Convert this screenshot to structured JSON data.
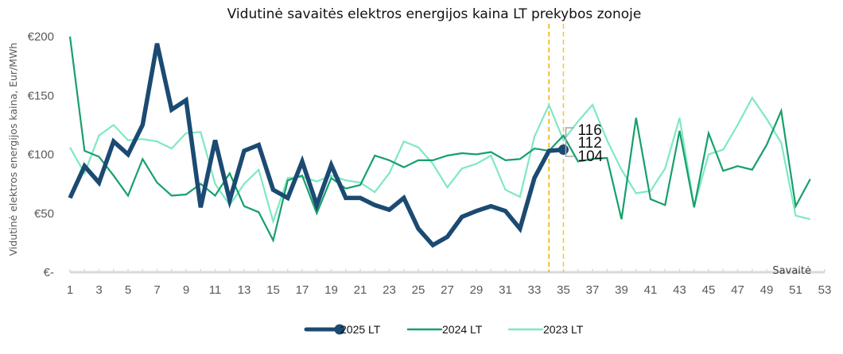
{
  "chart_data": {
    "type": "line",
    "title": "Vidutinė savaitės elektros energijos kaina LT prekybos zonoje",
    "xlabel": "Savaitė",
    "ylabel": "Vidutinė elektros energijos kaina, Eur/MWh",
    "ylim": [
      0,
      200
    ],
    "xlim": [
      1,
      53
    ],
    "y_ticks": [
      {
        "value": 0,
        "label": "€-"
      },
      {
        "value": 50,
        "label": "€50"
      },
      {
        "value": 100,
        "label": "€100"
      },
      {
        "value": 150,
        "label": "€150"
      },
      {
        "value": 200,
        "label": "€200"
      }
    ],
    "x_ticks": [
      "1",
      "3",
      "5",
      "7",
      "9",
      "11",
      "13",
      "15",
      "17",
      "19",
      "21",
      "23",
      "25",
      "27",
      "29",
      "31",
      "33",
      "35",
      "37",
      "39",
      "41",
      "43",
      "45",
      "47",
      "49",
      "51",
      "53"
    ],
    "grid": false,
    "legend_position": "bottom",
    "reference_lines": [
      {
        "x": 34,
        "color": "#f0b400"
      },
      {
        "x": 35,
        "color": "#f5c842"
      }
    ],
    "series": [
      {
        "name": "2025 LT",
        "color": "#1b4a72",
        "values": [
          63,
          90,
          76,
          111,
          100,
          125,
          194,
          138,
          146,
          55,
          112,
          61,
          103,
          108,
          70,
          63,
          94,
          57,
          91,
          63,
          63,
          57,
          53,
          63,
          37,
          23,
          30,
          47,
          52,
          56,
          52,
          37,
          80,
          103,
          104
        ]
      },
      {
        "name": "2024 LT",
        "color": "#16a06a",
        "values": [
          200,
          103,
          98,
          82,
          65,
          96,
          76,
          65,
          66,
          75,
          65,
          84,
          56,
          51,
          27,
          78,
          82,
          50,
          80,
          71,
          74,
          99,
          95,
          89,
          95,
          95,
          99,
          101,
          100,
          102,
          95,
          96,
          105,
          103,
          116,
          94,
          96,
          97,
          45,
          131,
          62,
          57,
          120,
          55,
          118,
          86,
          90,
          87,
          108,
          137,
          56,
          79
        ]
      },
      {
        "name": "2023 LT",
        "color": "#7fe8c4",
        "values": [
          106,
          84,
          116,
          125,
          112,
          113,
          111,
          105,
          118,
          119,
          75,
          57,
          75,
          87,
          43,
          80,
          81,
          77,
          82,
          78,
          76,
          68,
          84,
          111,
          106,
          92,
          72,
          88,
          92,
          99,
          70,
          64,
          115,
          142,
          112,
          128,
          142,
          112,
          87,
          67,
          69,
          88,
          131,
          56,
          100,
          104,
          125,
          148,
          130,
          110,
          48,
          45
        ]
      }
    ],
    "data_labels": [
      {
        "text": "116",
        "series": "2024 LT",
        "x": 35
      },
      {
        "text": "112",
        "series": "2023 LT",
        "x": 35
      },
      {
        "text": "104",
        "series": "2025 LT",
        "x": 35
      }
    ]
  }
}
